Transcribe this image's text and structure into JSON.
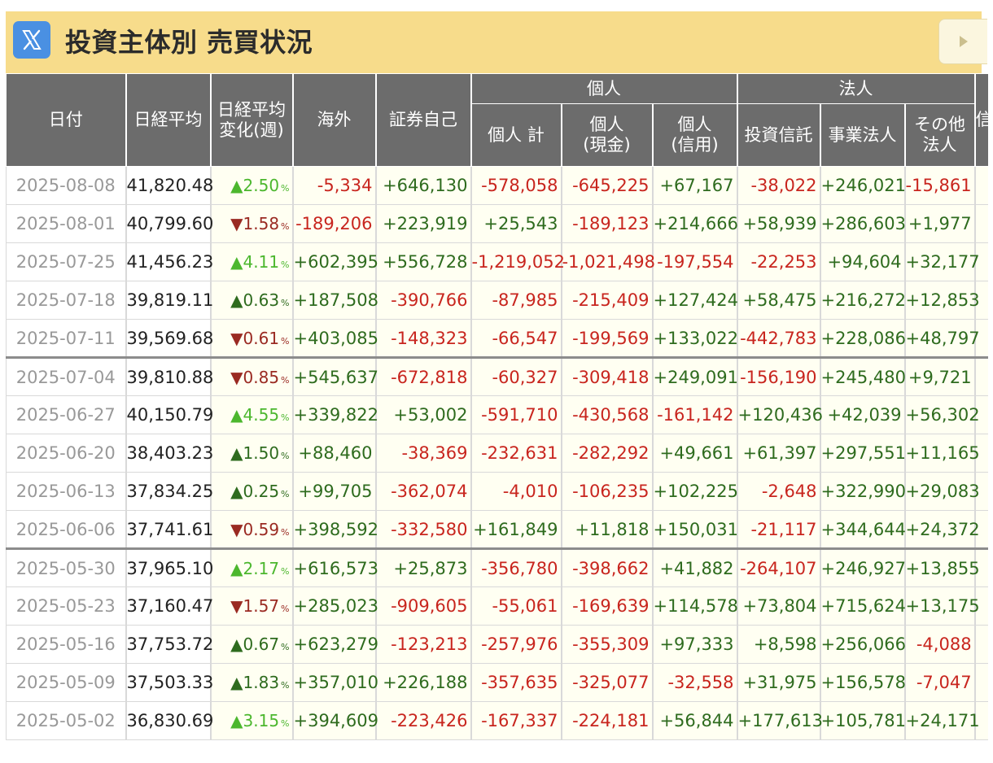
{
  "header": {
    "title": "投資主体別 売買状況",
    "x_icon": "x-logo-icon",
    "next_icon": "triangle-right-icon"
  },
  "columns": {
    "date": "日付",
    "nikkei": "日経平均",
    "nikkei_change_l1": "日経平均",
    "nikkei_change_l2": "変化(週)",
    "foreign": "海外",
    "proprietary": "証券自己",
    "individual_group": "個人",
    "individual_total": "個人 計",
    "individual_cash_l1": "個人",
    "individual_cash_l2": "(現金)",
    "individual_margin_l1": "個人",
    "individual_margin_l2": "(信用)",
    "corporate_group": "法人",
    "investment_trust": "投資信託",
    "business_corp": "事業法人",
    "other_corp_l1": "その他",
    "other_corp_l2": "法人",
    "cut_col": "信"
  },
  "pct_unit": "%",
  "rows": [
    {
      "date": "2025-08-08",
      "nikkei": "41,820.48",
      "arrow": "▲",
      "chg": "2.50",
      "trend": "up-strong",
      "foreign": "-5,334",
      "prop": "+646,130",
      "ind_total": "-578,058",
      "ind_cash": "-645,225",
      "ind_margin": "+67,167",
      "trust": "-38,022",
      "biz": "+246,021",
      "other": "-15,861",
      "sep": false
    },
    {
      "date": "2025-08-01",
      "nikkei": "40,799.60",
      "arrow": "▼",
      "chg": "1.58",
      "trend": "down",
      "foreign": "-189,206",
      "prop": "+223,919",
      "ind_total": "+25,543",
      "ind_cash": "-189,123",
      "ind_margin": "+214,666",
      "trust": "+58,939",
      "biz": "+286,603",
      "other": "+1,977",
      "sep": false
    },
    {
      "date": "2025-07-25",
      "nikkei": "41,456.23",
      "arrow": "▲",
      "chg": "4.11",
      "trend": "up-strong",
      "foreign": "+602,395",
      "prop": "+556,728",
      "ind_total": "-1,219,052",
      "ind_cash": "-1,021,498",
      "ind_margin": "-197,554",
      "trust": "-22,253",
      "biz": "+94,604",
      "other": "+32,177",
      "sep": false
    },
    {
      "date": "2025-07-18",
      "nikkei": "39,819.11",
      "arrow": "▲",
      "chg": "0.63",
      "trend": "up-weak",
      "foreign": "+187,508",
      "prop": "-390,766",
      "ind_total": "-87,985",
      "ind_cash": "-215,409",
      "ind_margin": "+127,424",
      "trust": "+58,475",
      "biz": "+216,272",
      "other": "+12,853",
      "sep": false
    },
    {
      "date": "2025-07-11",
      "nikkei": "39,569.68",
      "arrow": "▼",
      "chg": "0.61",
      "trend": "down",
      "foreign": "+403,085",
      "prop": "-148,323",
      "ind_total": "-66,547",
      "ind_cash": "-199,569",
      "ind_margin": "+133,022",
      "trust": "-442,783",
      "biz": "+228,086",
      "other": "+48,797",
      "sep": false
    },
    {
      "date": "2025-07-04",
      "nikkei": "39,810.88",
      "arrow": "▼",
      "chg": "0.85",
      "trend": "down",
      "foreign": "+545,637",
      "prop": "-672,818",
      "ind_total": "-60,327",
      "ind_cash": "-309,418",
      "ind_margin": "+249,091",
      "trust": "-156,190",
      "biz": "+245,480",
      "other": "+9,721",
      "sep": true
    },
    {
      "date": "2025-06-27",
      "nikkei": "40,150.79",
      "arrow": "▲",
      "chg": "4.55",
      "trend": "up-strong",
      "foreign": "+339,822",
      "prop": "+53,002",
      "ind_total": "-591,710",
      "ind_cash": "-430,568",
      "ind_margin": "-161,142",
      "trust": "+120,436",
      "biz": "+42,039",
      "other": "+56,302",
      "sep": false
    },
    {
      "date": "2025-06-20",
      "nikkei": "38,403.23",
      "arrow": "▲",
      "chg": "1.50",
      "trend": "up-weak",
      "foreign": "+88,460",
      "prop": "-38,369",
      "ind_total": "-232,631",
      "ind_cash": "-282,292",
      "ind_margin": "+49,661",
      "trust": "+61,397",
      "biz": "+297,551",
      "other": "+11,165",
      "sep": false
    },
    {
      "date": "2025-06-13",
      "nikkei": "37,834.25",
      "arrow": "▲",
      "chg": "0.25",
      "trend": "up-weak",
      "foreign": "+99,705",
      "prop": "-362,074",
      "ind_total": "-4,010",
      "ind_cash": "-106,235",
      "ind_margin": "+102,225",
      "trust": "-2,648",
      "biz": "+322,990",
      "other": "+29,083",
      "sep": false
    },
    {
      "date": "2025-06-06",
      "nikkei": "37,741.61",
      "arrow": "▼",
      "chg": "0.59",
      "trend": "down",
      "foreign": "+398,592",
      "prop": "-332,580",
      "ind_total": "+161,849",
      "ind_cash": "+11,818",
      "ind_margin": "+150,031",
      "trust": "-21,117",
      "biz": "+344,644",
      "other": "+24,372",
      "sep": false
    },
    {
      "date": "2025-05-30",
      "nikkei": "37,965.10",
      "arrow": "▲",
      "chg": "2.17",
      "trend": "up-strong",
      "foreign": "+616,573",
      "prop": "+25,873",
      "ind_total": "-356,780",
      "ind_cash": "-398,662",
      "ind_margin": "+41,882",
      "trust": "-264,107",
      "biz": "+246,927",
      "other": "+13,855",
      "sep": true
    },
    {
      "date": "2025-05-23",
      "nikkei": "37,160.47",
      "arrow": "▼",
      "chg": "1.57",
      "trend": "down",
      "foreign": "+285,023",
      "prop": "-909,605",
      "ind_total": "-55,061",
      "ind_cash": "-169,639",
      "ind_margin": "+114,578",
      "trust": "+73,804",
      "biz": "+715,624",
      "other": "+13,175",
      "sep": false
    },
    {
      "date": "2025-05-16",
      "nikkei": "37,753.72",
      "arrow": "▲",
      "chg": "0.67",
      "trend": "up-weak",
      "foreign": "+623,279",
      "prop": "-123,213",
      "ind_total": "-257,976",
      "ind_cash": "-355,309",
      "ind_margin": "+97,333",
      "trust": "+8,598",
      "biz": "+256,066",
      "other": "-4,088",
      "sep": false
    },
    {
      "date": "2025-05-09",
      "nikkei": "37,503.33",
      "arrow": "▲",
      "chg": "1.83",
      "trend": "up-weak",
      "foreign": "+357,010",
      "prop": "+226,188",
      "ind_total": "-357,635",
      "ind_cash": "-325,077",
      "ind_margin": "-32,558",
      "trust": "+31,975",
      "biz": "+156,578",
      "other": "-7,047",
      "sep": false
    },
    {
      "date": "2025-05-02",
      "nikkei": "36,830.69",
      "arrow": "▲",
      "chg": "3.15",
      "trend": "up-strong",
      "foreign": "+394,609",
      "prop": "-223,426",
      "ind_total": "-167,337",
      "ind_cash": "-224,181",
      "ind_margin": "+56,844",
      "trust": "+177,613",
      "biz": "+105,781",
      "other": "+24,171",
      "sep": false
    }
  ]
}
